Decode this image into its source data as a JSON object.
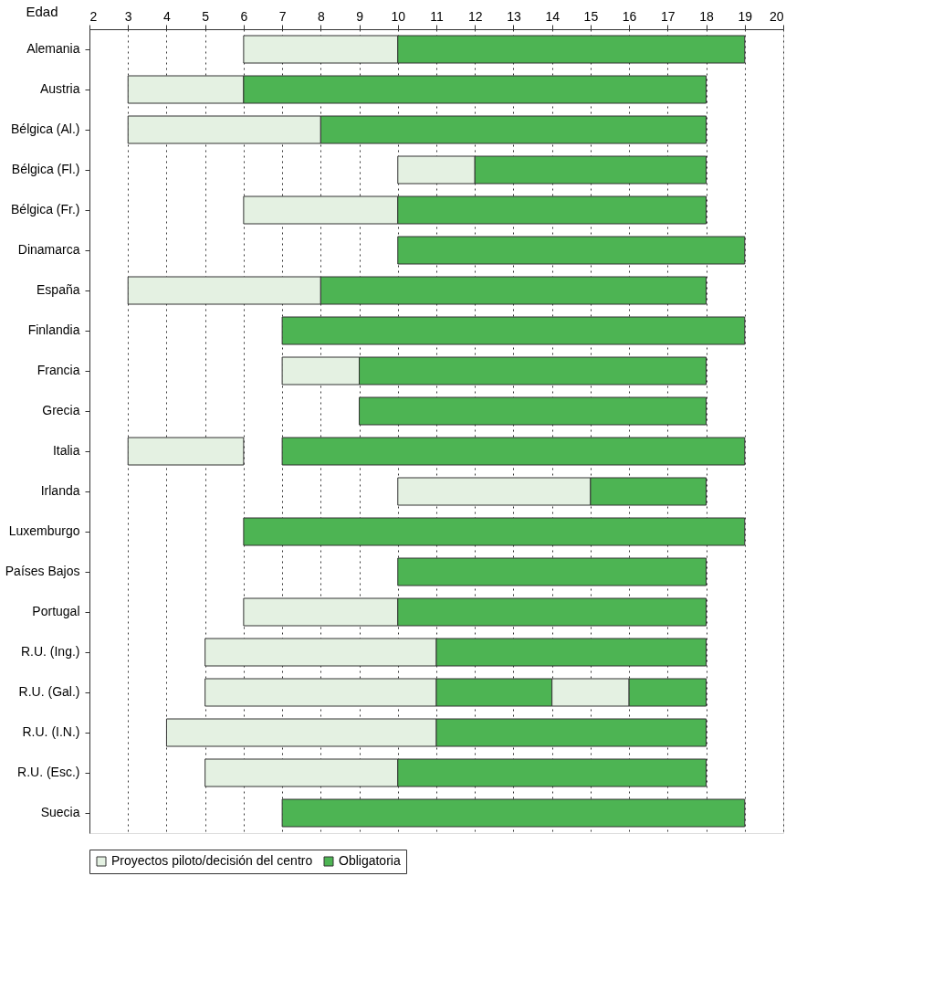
{
  "chart_data": {
    "type": "bar",
    "orientation": "horizontal",
    "xlabel": "Edad",
    "categories": [
      "Alemania",
      "Austria",
      "Bélgica (Al.)",
      "Bélgica (Fl.)",
      "Bélgica (Fr.)",
      "Dinamarca",
      "España",
      "Finlandia",
      "Francia",
      "Grecia",
      "Italia",
      "Irlanda",
      "Luxemburgo",
      "Países Bajos",
      "Portugal",
      "R.U. (Ing.)",
      "R.U. (Gal.)",
      "R.U. (I.N.)",
      "R.U. (Esc.)",
      "Suecia"
    ],
    "series": [
      {
        "name": "Proyectos piloto/decisión del centro",
        "color": "#e4f1e2",
        "base": [
          6,
          3,
          3,
          10,
          6,
          null,
          3,
          null,
          7,
          null,
          3,
          10,
          null,
          null,
          6,
          5,
          5,
          4,
          5,
          null
        ],
        "values": [
          4,
          3,
          5,
          2,
          4,
          null,
          5,
          null,
          2,
          null,
          3,
          5,
          null,
          null,
          4,
          6,
          6,
          7,
          5,
          null
        ]
      },
      {
        "name": "Obligatoria",
        "color": "#4db453",
        "base": [
          10,
          6,
          8,
          12,
          10,
          10,
          8,
          7,
          9,
          9,
          7,
          15,
          6,
          10,
          10,
          11,
          11,
          11,
          10,
          7
        ],
        "values": [
          9,
          12,
          10,
          6,
          8,
          9,
          10,
          12,
          9,
          9,
          12,
          3,
          13,
          8,
          8,
          7,
          3,
          7,
          8,
          12
        ]
      },
      {
        "color": "#e4f1e2",
        "base": [
          null,
          null,
          null,
          null,
          null,
          null,
          null,
          null,
          null,
          null,
          null,
          null,
          null,
          null,
          null,
          null,
          14,
          null,
          null,
          null
        ],
        "values": [
          null,
          null,
          null,
          null,
          null,
          null,
          null,
          null,
          null,
          null,
          null,
          null,
          null,
          null,
          null,
          null,
          2,
          null,
          null,
          null
        ]
      },
      {
        "color": "#4db453",
        "base": [
          null,
          null,
          null,
          null,
          null,
          null,
          null,
          null,
          null,
          null,
          null,
          null,
          null,
          null,
          null,
          null,
          16,
          null,
          null,
          null
        ],
        "values": [
          null,
          null,
          null,
          null,
          null,
          null,
          null,
          null,
          null,
          null,
          null,
          null,
          null,
          null,
          null,
          null,
          2,
          null,
          null,
          null
        ]
      }
    ],
    "xlim": [
      2,
      20
    ],
    "xticks": [
      2,
      3,
      4,
      5,
      6,
      7,
      8,
      9,
      10,
      11,
      12,
      13,
      14,
      15,
      16,
      17,
      18,
      19,
      20
    ],
    "grid": "x",
    "legend": "bottom"
  }
}
